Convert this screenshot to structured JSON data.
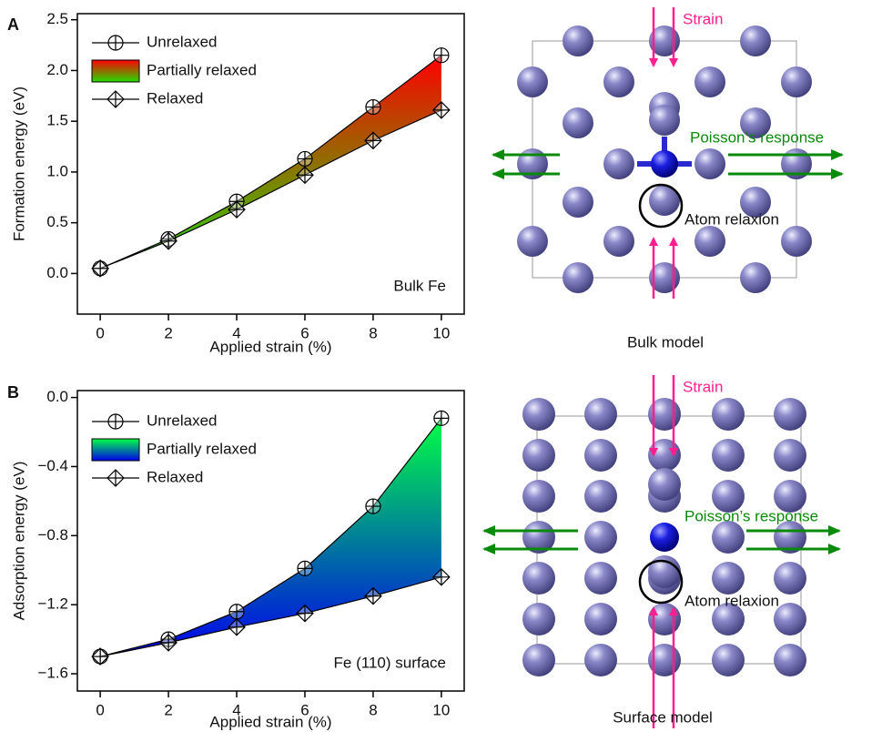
{
  "chart_data": [
    {
      "type": "line",
      "panel": "A",
      "ylabel": "Formation energy (eV)",
      "xlabel": "Applied strain (%)",
      "annotation": "Bulk Fe",
      "x": [
        0,
        2,
        4,
        6,
        8,
        10
      ],
      "series": [
        {
          "name": "Unrelaxed",
          "color": "#000000",
          "marker": "circle-plus",
          "values": [
            0.05,
            0.34,
            0.71,
            1.13,
            1.64,
            2.15
          ]
        },
        {
          "name": "Relaxed",
          "color": "#000000",
          "marker": "diamond-plus",
          "values": [
            0.05,
            0.32,
            0.63,
            0.97,
            1.31,
            1.61
          ]
        }
      ],
      "fill": {
        "name": "Partially relaxed",
        "colors": [
          "#22dd00",
          "#ff0000"
        ]
      },
      "xlim": [
        -0.67,
        10.67
      ],
      "xticks": [
        0,
        2,
        4,
        6,
        8,
        10
      ],
      "ylim": [
        -0.4,
        2.56
      ],
      "yticks": [
        {
          "value": 0,
          "label": "0.0"
        },
        0.5,
        {
          "value": 1,
          "label": "1.0"
        },
        1.5,
        {
          "value": 2,
          "label": "2.0"
        },
        2.5
      ]
    },
    {
      "type": "line",
      "panel": "B",
      "ylabel": "Adsorption energy (eV)",
      "xlabel": "Applied strain (%)",
      "annotation": "Fe (110) surface",
      "x": [
        0,
        2,
        4,
        6,
        8,
        10
      ],
      "series": [
        {
          "name": "Unrelaxed",
          "color": "#000000",
          "marker": "circle-plus",
          "values": [
            -1.5,
            -1.4,
            -1.24,
            -0.99,
            -0.63,
            -0.12
          ]
        },
        {
          "name": "Relaxed",
          "color": "#000000",
          "marker": "diamond-plus",
          "values": [
            -1.5,
            -1.42,
            -1.33,
            -1.25,
            -1.15,
            -1.04
          ]
        }
      ],
      "fill": {
        "name": "Partially relaxed",
        "colors": [
          "#0000ee",
          "#00ff44"
        ]
      },
      "xlim": [
        -0.67,
        10.67
      ],
      "xticks": [
        0,
        2,
        4,
        6,
        8,
        10
      ],
      "ylim": [
        -1.7,
        0.04
      ],
      "yticks": [
        {
          "value": -1.6,
          "label": "−1.6"
        },
        {
          "value": -1.2,
          "label": "−1.2"
        },
        {
          "value": -0.8,
          "label": "−0.8"
        },
        {
          "value": -0.4,
          "label": "−0.4"
        },
        {
          "value": 0,
          "label": "0.0"
        }
      ]
    }
  ],
  "models": [
    {
      "title": "Bulk model",
      "strain": "Strain",
      "poisson": "Poisson’s response",
      "relax": "Atom relaxion"
    },
    {
      "title": "Surface model",
      "strain": "Strain",
      "poisson": "Poisson’s response",
      "relax": "Atom relaxion"
    }
  ]
}
